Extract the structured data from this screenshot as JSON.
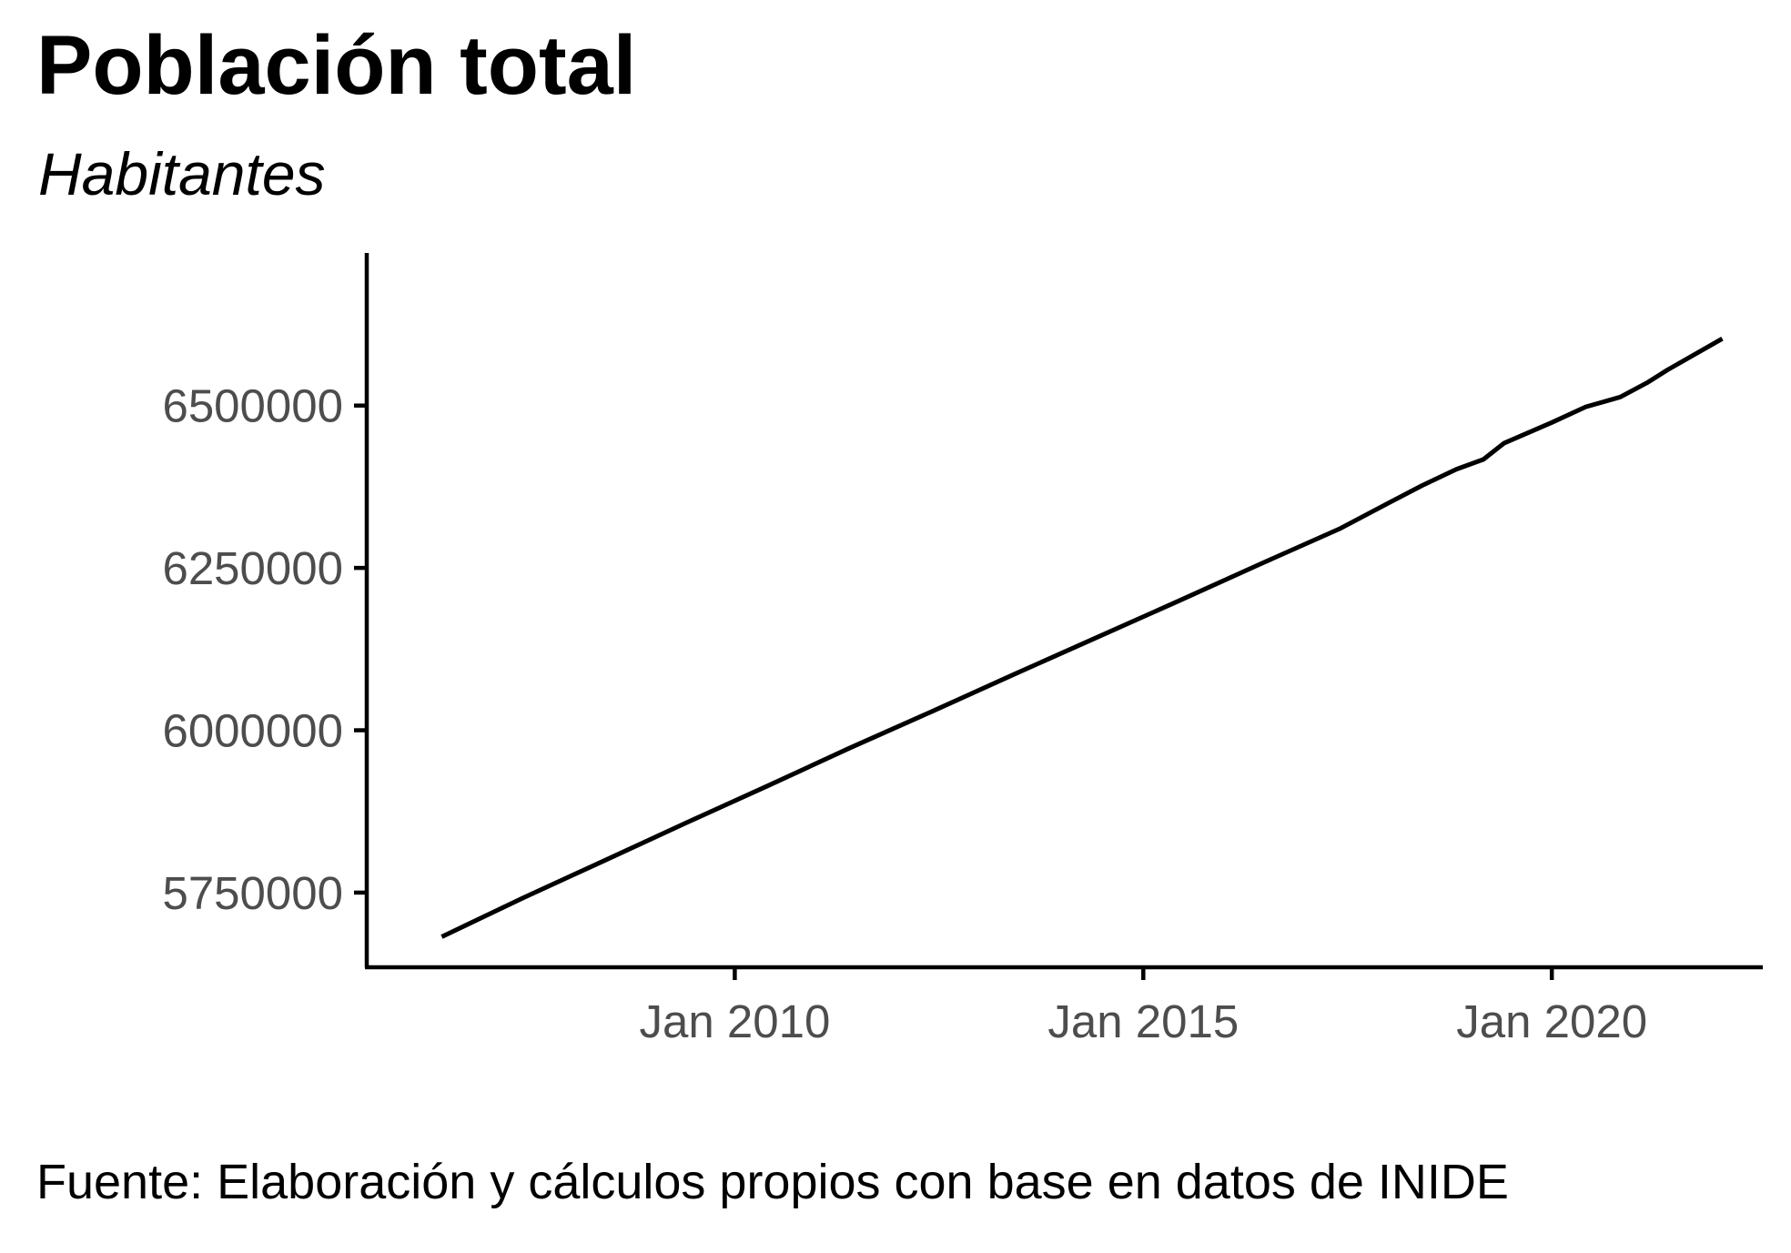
{
  "chart_data": {
    "type": "line",
    "title": "Población total",
    "subtitle": "Habitantes",
    "caption": "Fuente: Elaboración y cálculos propios con base en datos de INIDE",
    "xlabel": "",
    "ylabel": "",
    "x_axis": {
      "type": "date",
      "range": [
        "2005-07-01",
        "2022-08-01"
      ],
      "ticks": [
        {
          "value": "2010-01-01",
          "label": "Jan 2010"
        },
        {
          "value": "2015-01-01",
          "label": "Jan 2015"
        },
        {
          "value": "2020-01-01",
          "label": "Jan 2020"
        }
      ]
    },
    "y_axis": {
      "range": [
        5635000,
        6735000
      ],
      "ticks": [
        {
          "value": 5750000,
          "label": "5750000"
        },
        {
          "value": 6000000,
          "label": "6000000"
        },
        {
          "value": 6250000,
          "label": "6250000"
        },
        {
          "value": 6500000,
          "label": "6500000"
        }
      ]
    },
    "grid": false,
    "legend": "none",
    "series": [
      {
        "color": "#000000",
        "x": [
          "2006-06-01",
          "2007-06-01",
          "2008-06-01",
          "2009-06-01",
          "2010-06-01",
          "2011-06-01",
          "2012-06-01",
          "2013-06-01",
          "2014-06-01",
          "2015-06-01",
          "2016-06-01",
          "2017-06-01",
          "2018-01-01",
          "2018-06-01",
          "2018-11-01",
          "2019-03-01",
          "2019-06-01",
          "2020-01-01",
          "2020-06-01",
          "2020-11-01",
          "2021-03-01",
          "2021-06-01",
          "2022-02-01"
        ],
        "y": [
          5682000,
          5742000,
          5800000,
          5858000,
          5915000,
          5973000,
          6029000,
          6086000,
          6142000,
          6198000,
          6255000,
          6311000,
          6350000,
          6377000,
          6402000,
          6417000,
          6442000,
          6474000,
          6498000,
          6513000,
          6535000,
          6555000,
          6603000
        ]
      }
    ]
  }
}
